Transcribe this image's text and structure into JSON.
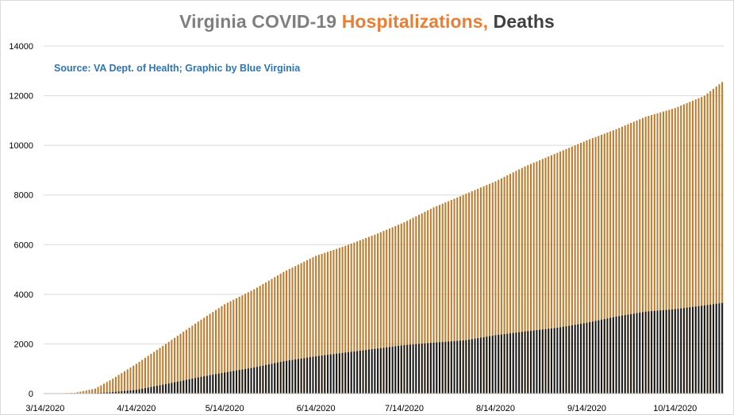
{
  "chart_data": {
    "type": "bar",
    "title_parts": [
      {
        "text": "Virginia COVID-19 ",
        "color": "#7f7f7f"
      },
      {
        "text": "Hospitalizations, ",
        "color": "#ed7d31"
      },
      {
        "text": "Deaths",
        "color": "#404040"
      }
    ],
    "annotation": "Source: VA Dept. of Health; Graphic by Blue Virginia",
    "annotation_color": "#2e75b6",
    "xlabel": "",
    "ylabel": "",
    "ylim": [
      0,
      14000
    ],
    "yticks": [
      0,
      2000,
      4000,
      6000,
      8000,
      10000,
      12000,
      14000
    ],
    "x_start_date": "2020-03-14",
    "x_end_date": "2020-10-30",
    "xtick_labels": [
      "3/14/2020",
      "4/14/2020",
      "5/14/2020",
      "6/14/2020",
      "7/14/2020",
      "8/14/2020",
      "9/14/2020",
      "10/14/2020"
    ],
    "grid": true,
    "series": [
      {
        "color": "#c07a2c",
        "keypoints": [
          {
            "x": "2020-03-14",
            "y": 0
          },
          {
            "x": "2020-03-24",
            "y": 30
          },
          {
            "x": "2020-03-31",
            "y": 200
          },
          {
            "x": "2020-04-06",
            "y": 600
          },
          {
            "x": "2020-04-14",
            "y": 1200
          },
          {
            "x": "2020-04-24",
            "y": 2000
          },
          {
            "x": "2020-05-05",
            "y": 2900
          },
          {
            "x": "2020-05-14",
            "y": 3600
          },
          {
            "x": "2020-05-24",
            "y": 4200
          },
          {
            "x": "2020-06-03",
            "y": 4900
          },
          {
            "x": "2020-06-14",
            "y": 5550
          },
          {
            "x": "2020-06-24",
            "y": 5950
          },
          {
            "x": "2020-07-04",
            "y": 6400
          },
          {
            "x": "2020-07-14",
            "y": 6900
          },
          {
            "x": "2020-07-24",
            "y": 7500
          },
          {
            "x": "2020-08-04",
            "y": 8050
          },
          {
            "x": "2020-08-14",
            "y": 8550
          },
          {
            "x": "2020-08-24",
            "y": 9150
          },
          {
            "x": "2020-09-04",
            "y": 9700
          },
          {
            "x": "2020-09-14",
            "y": 10200
          },
          {
            "x": "2020-09-24",
            "y": 10650
          },
          {
            "x": "2020-10-04",
            "y": 11150
          },
          {
            "x": "2020-10-14",
            "y": 11500
          },
          {
            "x": "2020-10-24",
            "y": 12000
          },
          {
            "x": "2020-10-30",
            "y": 12550
          }
        ]
      },
      {
        "color": "#1a1a1a",
        "keypoints": [
          {
            "x": "2020-03-14",
            "y": 0
          },
          {
            "x": "2020-03-31",
            "y": 20
          },
          {
            "x": "2020-04-06",
            "y": 60
          },
          {
            "x": "2020-04-14",
            "y": 150
          },
          {
            "x": "2020-04-24",
            "y": 380
          },
          {
            "x": "2020-05-05",
            "y": 650
          },
          {
            "x": "2020-05-14",
            "y": 850
          },
          {
            "x": "2020-05-24",
            "y": 1050
          },
          {
            "x": "2020-06-03",
            "y": 1300
          },
          {
            "x": "2020-06-14",
            "y": 1500
          },
          {
            "x": "2020-06-24",
            "y": 1650
          },
          {
            "x": "2020-07-04",
            "y": 1800
          },
          {
            "x": "2020-07-14",
            "y": 1950
          },
          {
            "x": "2020-07-24",
            "y": 2050
          },
          {
            "x": "2020-08-04",
            "y": 2150
          },
          {
            "x": "2020-08-14",
            "y": 2350
          },
          {
            "x": "2020-08-24",
            "y": 2500
          },
          {
            "x": "2020-09-04",
            "y": 2650
          },
          {
            "x": "2020-09-14",
            "y": 2850
          },
          {
            "x": "2020-09-24",
            "y": 3100
          },
          {
            "x": "2020-10-04",
            "y": 3300
          },
          {
            "x": "2020-10-14",
            "y": 3400
          },
          {
            "x": "2020-10-24",
            "y": 3550
          },
          {
            "x": "2020-10-30",
            "y": 3650
          }
        ]
      }
    ]
  }
}
